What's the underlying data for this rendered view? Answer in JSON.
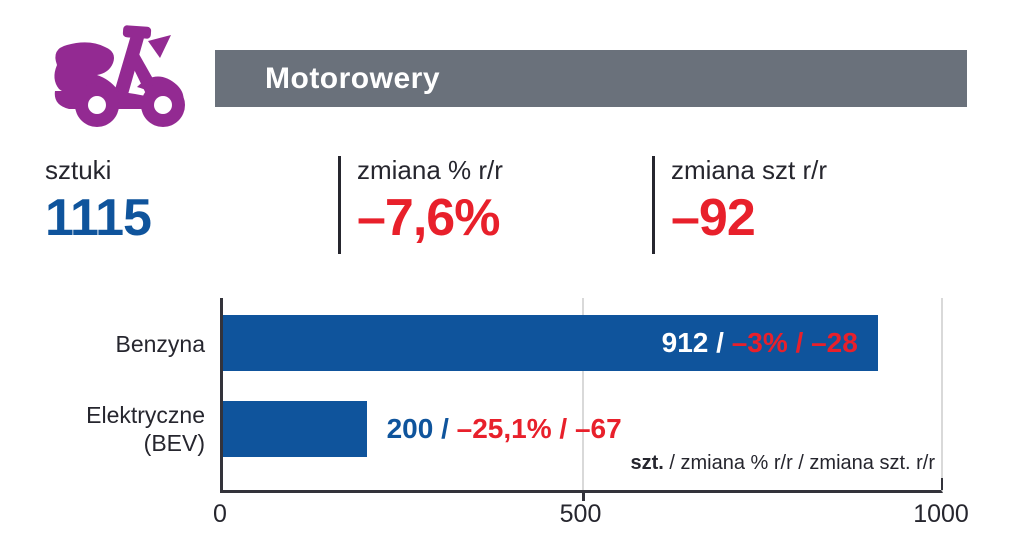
{
  "header": {
    "title": "Motorowery",
    "icon": "scooter-icon"
  },
  "stats": {
    "units": {
      "label": "sztuki",
      "value": "1115"
    },
    "change_pct": {
      "label": "zmiana % r/r",
      "value": "–7,6%"
    },
    "change_units": {
      "label": "zmiana szt r/r",
      "value": "–92"
    }
  },
  "chart_data": {
    "type": "bar",
    "orientation": "horizontal",
    "title": "Motorowery",
    "categories": [
      "Benzyna",
      "Elektryczne (BEV)"
    ],
    "values": [
      912,
      200
    ],
    "xlim": [
      0,
      1000
    ],
    "xticks": [
      "0",
      "500",
      "1000"
    ],
    "grid": "vertical gridline at 500, light gray; right border at 1000",
    "legend_bold": "szt.",
    "legend_rest": " / zmiana % r/r / zmiana szt. r/r",
    "bars": [
      {
        "category_line1": "Benzyna",
        "category_line2": "",
        "value": 912,
        "value_text": "912 / ",
        "change_text": "–3% / –28",
        "label_position": "inside"
      },
      {
        "category_line1": "Elektryczne",
        "category_line2": "(BEV)",
        "value": 200,
        "value_text": "200 / ",
        "change_text": "–25,1% / –67",
        "label_position": "outside"
      }
    ],
    "summary": {
      "total_units": "1115",
      "total_change_pct_yoy": "–7,6%",
      "total_change_units_yoy": "–92"
    }
  },
  "colors": {
    "bar_blue": "#0f549c",
    "negative_red": "#e8202b",
    "banner_gray": "#6a717b",
    "icon_purple": "#932a92",
    "text_dark": "#26262e",
    "grid_gray": "#d9d9d9"
  }
}
